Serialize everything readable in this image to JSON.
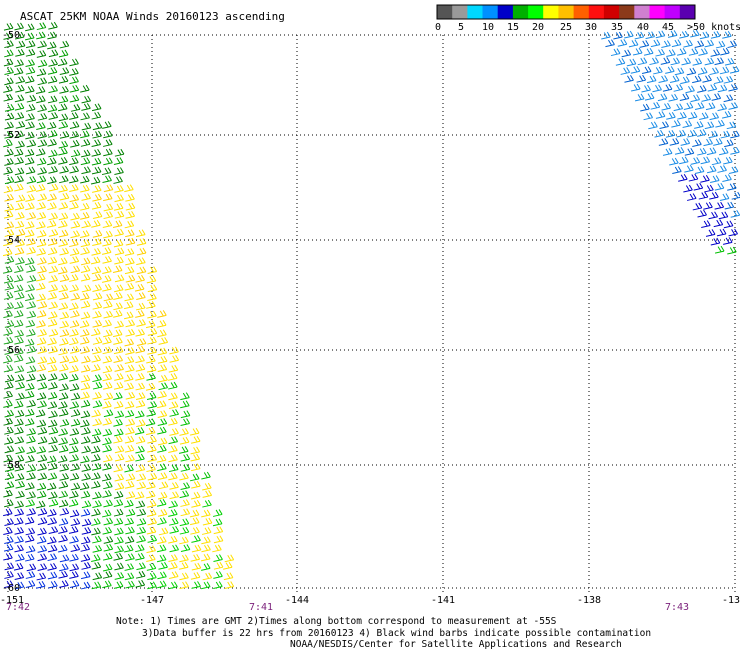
{
  "title": "ASCAT 25KM NOAA Winds 20160123 ascending",
  "legend": {
    "colors": [
      "#555555",
      "#9a9a9a",
      "#00d8ff",
      "#0090ff",
      "#0000c8",
      "#00b000",
      "#00ff00",
      "#ffff00",
      "#ffc000",
      "#ff6000",
      "#ff1010",
      "#d00000",
      "#8b3a1a",
      "#d080d0",
      "#ff00ff",
      "#c000ff",
      "#5a00b0"
    ],
    "labels": [
      "0",
      "5",
      "10",
      "15",
      "20",
      "25",
      "30",
      "35",
      "40",
      "45",
      ">50 knots"
    ]
  },
  "lat_labels": [
    "-50",
    "-52",
    "-54",
    "-56",
    "-58",
    "-60"
  ],
  "lon_labels": [
    "-151",
    "-147",
    "-144",
    "-141",
    "-138",
    "-13"
  ],
  "time_labels": [
    "7:42",
    "7:41",
    "7:43"
  ],
  "notes": [
    "Note: 1) Times are GMT 2)Times along bottom correspond to measurement at -55S",
    "3)Data buffer is 22 hrs from 20160123 4) Black wind barbs indicate possible contamination",
    "NOAA/NESDIS/Center for Satellite Applications and Research"
  ]
}
